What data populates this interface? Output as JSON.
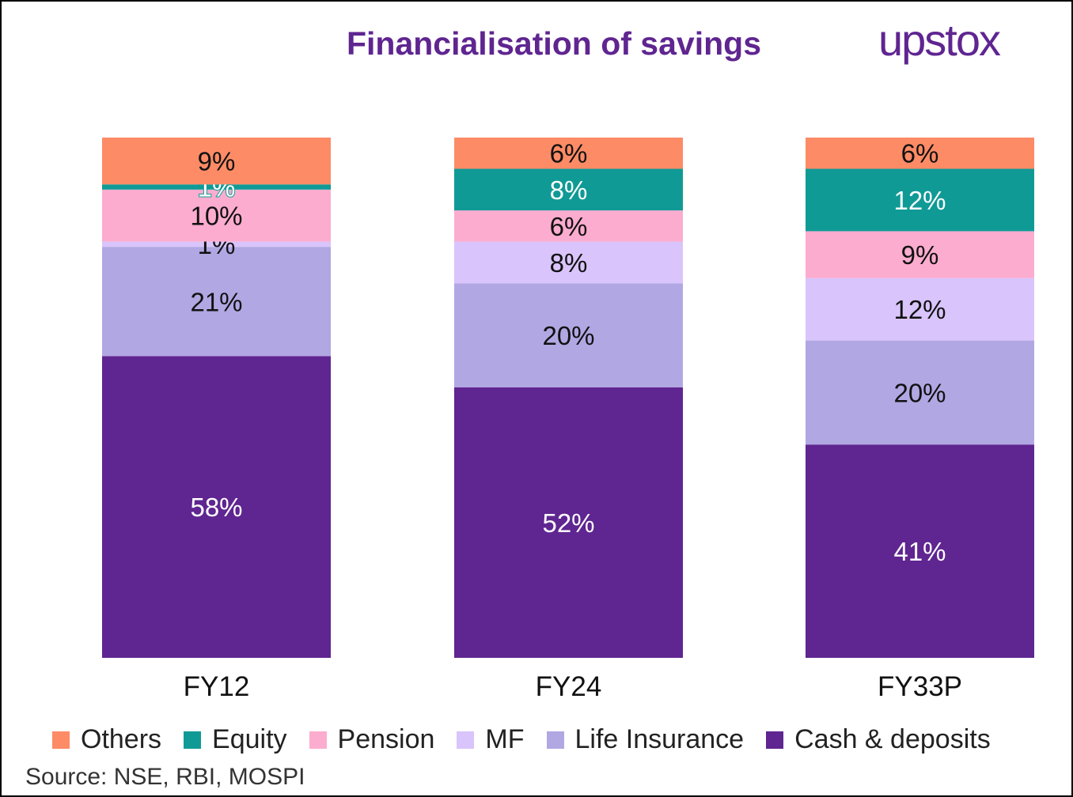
{
  "logo_text": "upstox",
  "colors": {
    "Others": "#fd8b66",
    "Equity": "#109a96",
    "Pension": "#fcaccf",
    "MF": "#d9c4fb",
    "Life Insurance": "#b1a7e3",
    "Cash & deposits": "#5f2590"
  },
  "source": "Source: NSE, RBI, MOSPI",
  "chart_data": {
    "type": "bar",
    "stacked": true,
    "title": "Financialisation of savings",
    "categories": [
      "FY12",
      "FY24",
      "FY33P"
    ],
    "series": [
      {
        "name": "Cash & deposits",
        "values": [
          58,
          52,
          41
        ],
        "labels": [
          "58%",
          "52%",
          "41%"
        ]
      },
      {
        "name": "Life Insurance",
        "values": [
          21,
          20,
          20
        ],
        "labels": [
          "21%",
          "20%",
          "20%"
        ]
      },
      {
        "name": "MF",
        "values": [
          1,
          8,
          12
        ],
        "labels": [
          "1%",
          "8%",
          "12%"
        ]
      },
      {
        "name": "Pension",
        "values": [
          10,
          6,
          9
        ],
        "labels": [
          "10%",
          "6%",
          "9%"
        ]
      },
      {
        "name": "Equity",
        "values": [
          1,
          8,
          12
        ],
        "labels": [
          "1%",
          "8%",
          "12%"
        ]
      },
      {
        "name": "Others",
        "values": [
          9,
          6,
          6
        ],
        "labels": [
          "9%",
          "6%",
          "6%"
        ]
      }
    ],
    "legend_order": [
      "Others",
      "Equity",
      "Pension",
      "MF",
      "Life Insurance",
      "Cash & deposits"
    ],
    "ylim": [
      0,
      100
    ],
    "xlabel": "",
    "ylabel": "",
    "grid": false,
    "legend_position": "bottom"
  }
}
